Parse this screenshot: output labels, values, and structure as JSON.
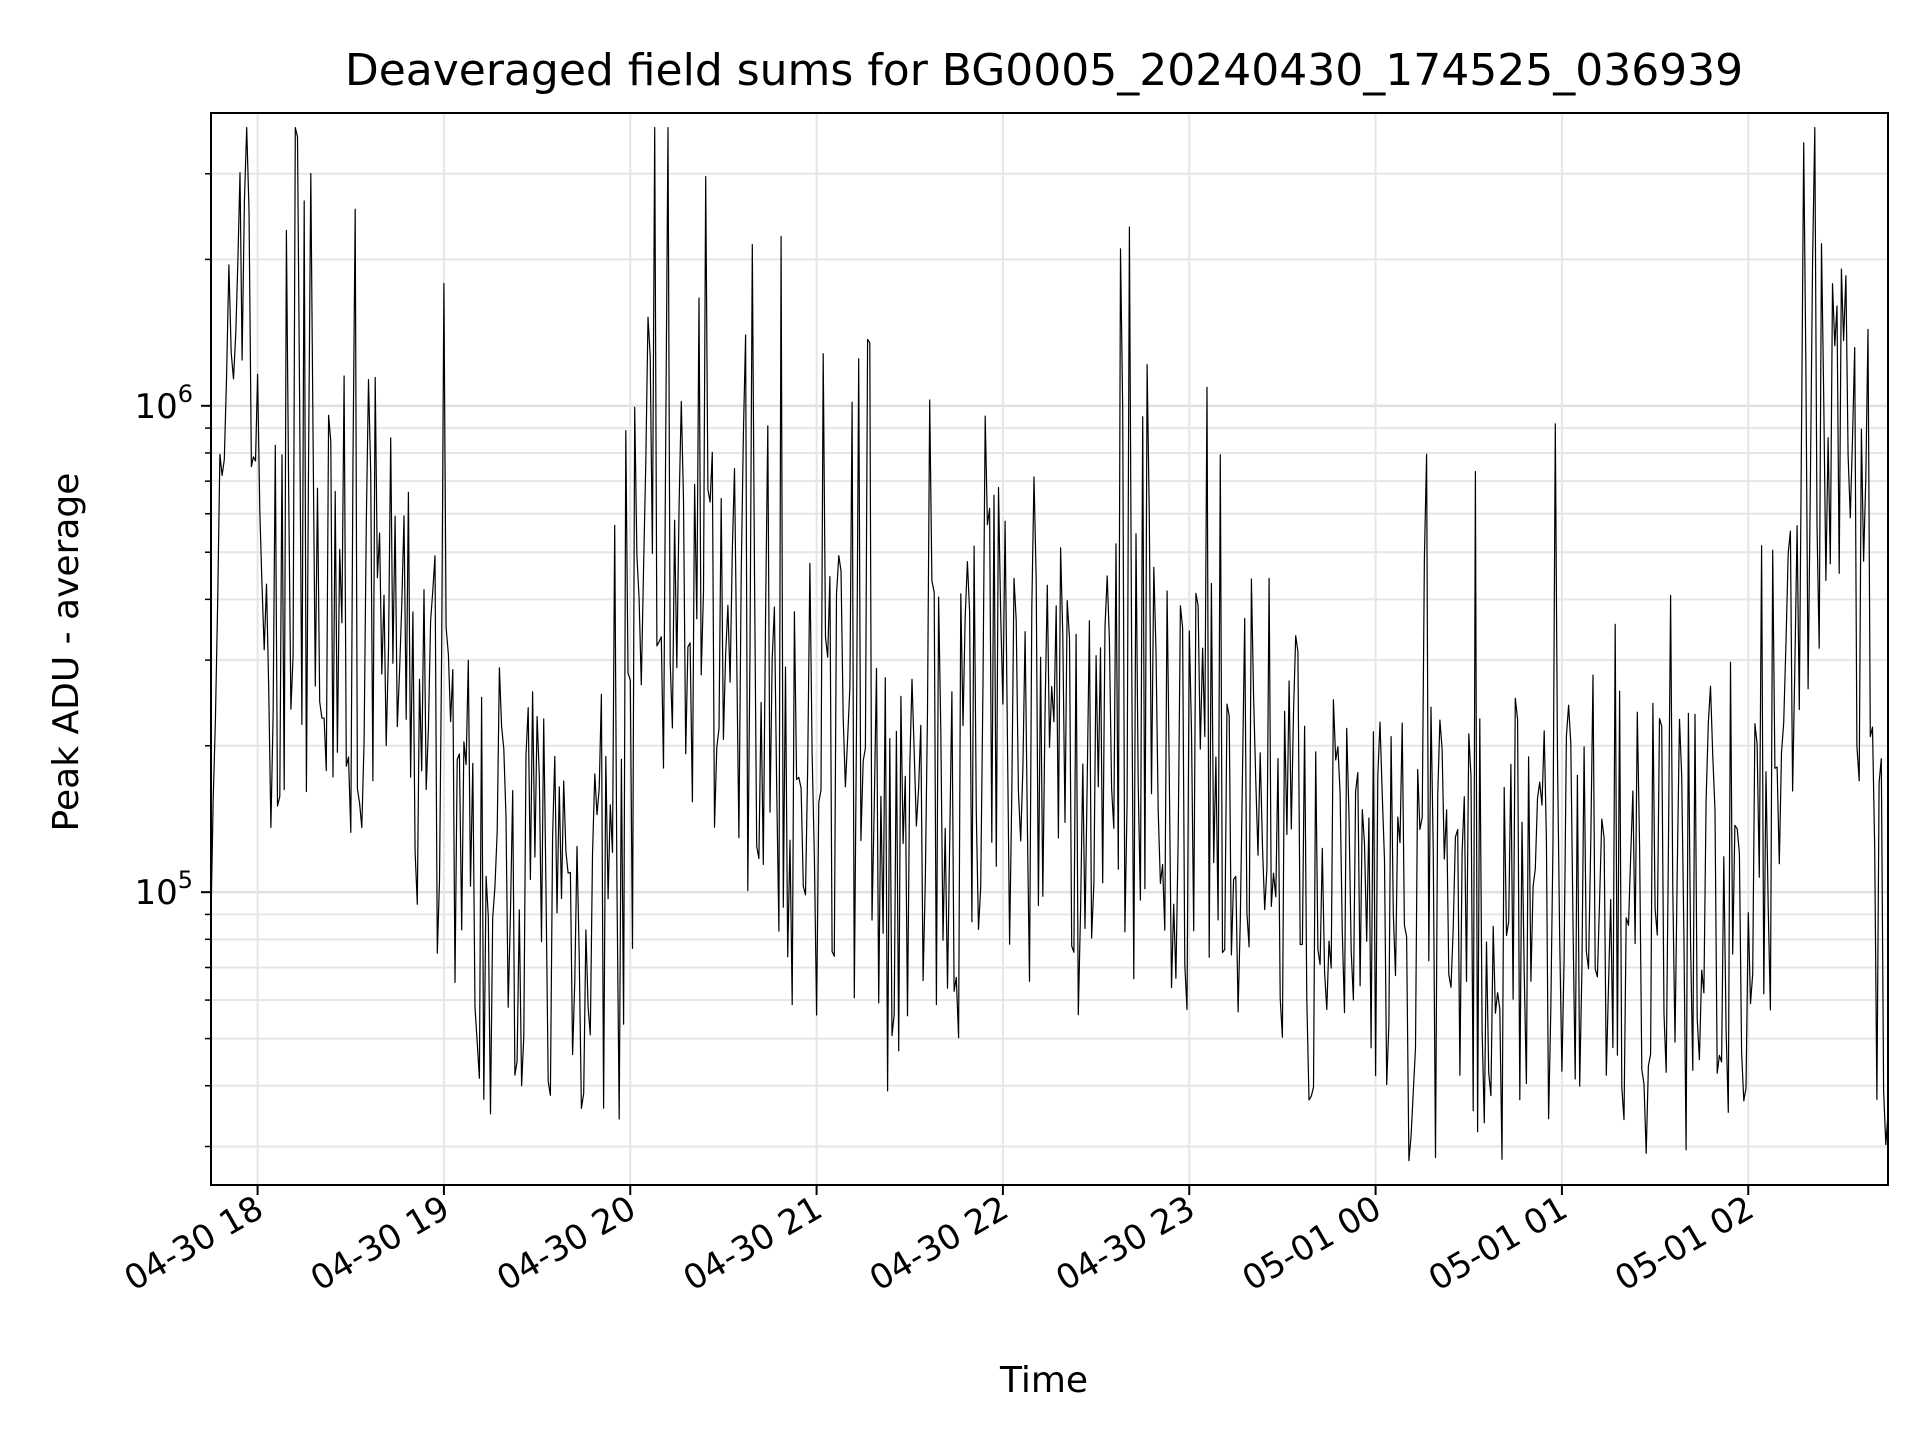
{
  "chart_data": {
    "type": "line",
    "title": "Deaveraged field sums for BG0005_20240430_174525_036939",
    "xlabel": "Time",
    "ylabel": "Peak ADU - average",
    "yscale": "log",
    "ylim": [
      25000,
      4000000
    ],
    "xlim": [
      "2024-04-30 17:45",
      "2024-05-01 02:45"
    ],
    "grid": true,
    "series_color": "#000000",
    "x_ticks": [
      {
        "value": "2024-04-30 18:00",
        "label": "04-30 18"
      },
      {
        "value": "2024-04-30 19:00",
        "label": "04-30 19"
      },
      {
        "value": "2024-04-30 20:00",
        "label": "04-30 20"
      },
      {
        "value": "2024-04-30 21:00",
        "label": "04-30 21"
      },
      {
        "value": "2024-04-30 22:00",
        "label": "04-30 22"
      },
      {
        "value": "2024-04-30 23:00",
        "label": "04-30 23"
      },
      {
        "value": "2024-05-01 00:00",
        "label": "05-01 00"
      },
      {
        "value": "2024-05-01 01:00",
        "label": "05-01 01"
      },
      {
        "value": "2024-05-01 02:00",
        "label": "05-01 02"
      }
    ],
    "y_ticks": [
      {
        "value": 100000,
        "base": "10",
        "exp": "5"
      },
      {
        "value": 1000000,
        "base": "10",
        "exp": "6"
      }
    ],
    "series": [
      {
        "x": [
          "2024-04-30 17:45",
          "2024-04-30 17:50",
          "2024-04-30 17:53",
          "2024-04-30 17:55",
          "2024-04-30 17:58",
          "2024-04-30 18:00",
          "2024-04-30 18:05",
          "2024-04-30 18:10",
          "2024-04-30 18:15",
          "2024-04-30 18:20",
          "2024-04-30 18:25",
          "2024-04-30 18:30",
          "2024-04-30 18:35",
          "2024-04-30 18:40",
          "2024-04-30 18:45",
          "2024-04-30 18:50",
          "2024-04-30 18:55",
          "2024-04-30 19:00",
          "2024-04-30 19:05",
          "2024-04-30 19:10",
          "2024-04-30 19:15",
          "2024-04-30 19:20",
          "2024-04-30 19:25",
          "2024-04-30 19:30",
          "2024-04-30 19:35",
          "2024-04-30 19:40",
          "2024-04-30 19:45",
          "2024-04-30 19:50",
          "2024-04-30 19:55",
          "2024-04-30 20:00",
          "2024-04-30 20:05",
          "2024-04-30 20:10",
          "2024-04-30 20:15",
          "2024-04-30 20:20",
          "2024-04-30 20:25",
          "2024-04-30 20:30",
          "2024-04-30 20:35",
          "2024-04-30 20:40",
          "2024-04-30 20:45",
          "2024-04-30 20:50",
          "2024-04-30 20:55",
          "2024-04-30 21:00",
          "2024-04-30 21:05",
          "2024-04-30 21:10",
          "2024-04-30 21:15",
          "2024-04-30 21:20",
          "2024-04-30 21:25",
          "2024-04-30 21:30",
          "2024-04-30 21:35",
          "2024-04-30 21:40",
          "2024-04-30 21:45",
          "2024-04-30 21:50",
          "2024-04-30 21:55",
          "2024-04-30 22:00",
          "2024-04-30 22:05",
          "2024-04-30 22:10",
          "2024-04-30 22:15",
          "2024-04-30 22:20",
          "2024-04-30 22:25",
          "2024-04-30 22:30",
          "2024-04-30 22:35",
          "2024-04-30 22:40",
          "2024-04-30 22:45",
          "2024-04-30 22:50",
          "2024-04-30 22:55",
          "2024-04-30 23:00",
          "2024-04-30 23:05",
          "2024-04-30 23:10",
          "2024-04-30 23:15",
          "2024-04-30 23:20",
          "2024-04-30 23:25",
          "2024-04-30 23:30",
          "2024-04-30 23:35",
          "2024-04-30 23:40",
          "2024-04-30 23:45",
          "2024-04-30 23:50",
          "2024-04-30 23:55",
          "2024-05-01 00:00",
          "2024-05-01 00:05",
          "2024-05-01 00:10",
          "2024-05-01 00:15",
          "2024-05-01 00:20",
          "2024-05-01 00:25",
          "2024-05-01 00:30",
          "2024-05-01 00:35",
          "2024-05-01 00:40",
          "2024-05-01 00:45",
          "2024-05-01 00:50",
          "2024-05-01 00:55",
          "2024-05-01 01:00",
          "2024-05-01 01:05",
          "2024-05-01 01:10",
          "2024-05-01 01:15",
          "2024-05-01 01:20",
          "2024-05-01 01:25",
          "2024-05-01 01:30",
          "2024-05-01 01:35",
          "2024-05-01 01:40",
          "2024-05-01 01:45",
          "2024-05-01 01:50",
          "2024-05-01 01:55",
          "2024-05-01 02:00",
          "2024-05-01 02:05",
          "2024-05-01 02:10",
          "2024-05-01 02:15",
          "2024-05-01 02:20",
          "2024-05-01 02:25",
          "2024-05-01 02:30",
          "2024-05-01 02:35",
          "2024-05-01 02:40",
          "2024-05-01 02:45"
        ],
        "y": [
          250000,
          600000,
          2000000,
          3100000,
          1500000,
          500000,
          280000,
          420000,
          350000,
          300000,
          380000,
          320000,
          400000,
          450000,
          300000,
          230000,
          180000,
          220000,
          150000,
          110000,
          90000,
          130000,
          110000,
          120000,
          100000,
          95000,
          90000,
          100000,
          80000,
          110000,
          700000,
          500000,
          450000,
          350000,
          300000,
          400000,
          250000,
          300000,
          280000,
          200000,
          110000,
          150000,
          200000,
          170000,
          140000,
          150000,
          120000,
          130000,
          140000,
          160000,
          170000,
          200000,
          250000,
          220000,
          190000,
          160000,
          200000,
          180000,
          150000,
          200000,
          250000,
          230000,
          170000,
          160000,
          150000,
          160000,
          140000,
          150000,
          130000,
          170000,
          200000,
          160000,
          120000,
          100000,
          90000,
          110000,
          95000,
          100000,
          95000,
          90000,
          85000,
          90000,
          80000,
          85000,
          95000,
          90000,
          100000,
          110000,
          90000,
          95000,
          100000,
          110000,
          100000,
          95000,
          90000,
          110000,
          100000,
          95000,
          90000,
          100000,
          110000,
          90000,
          100000,
          180000,
          500000,
          700000,
          800000,
          900000,
          500000,
          200000,
          35000
        ]
      }
    ]
  }
}
